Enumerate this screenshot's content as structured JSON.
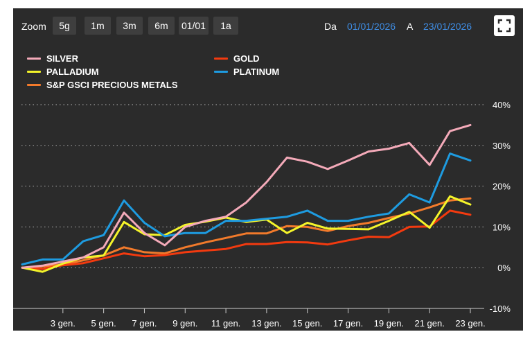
{
  "toolbar": {
    "zoom_label": "Zoom",
    "zoom_options": [
      "5g",
      "1m",
      "3m",
      "6m",
      "01/01",
      "1a"
    ],
    "from_label": "Da",
    "from_value": "01/01/2026",
    "to_label": "A",
    "to_value": "23/01/2026",
    "fullscreen_icon": "fullscreen-icon"
  },
  "colors": {
    "background": "#2b2b2b",
    "button": "#3e3e3e",
    "date_link": "#3f8ee6",
    "grid": "#8a8a8a"
  },
  "chart_data": {
    "type": "line",
    "xlabel": "",
    "ylabel": "",
    "x": [
      "1 gen.",
      "2 gen.",
      "3 gen.",
      "4 gen.",
      "5 gen.",
      "6 gen.",
      "7 gen.",
      "8 gen.",
      "9 gen.",
      "10 gen.",
      "11 gen.",
      "12 gen.",
      "13 gen.",
      "14 gen.",
      "15 gen.",
      "16 gen.",
      "17 gen.",
      "18 gen.",
      "19 gen.",
      "20 gen.",
      "21 gen.",
      "22 gen.",
      "23 gen."
    ],
    "x_tick_labels": [
      "3 gen.",
      "5 gen.",
      "7 gen.",
      "9 gen.",
      "11 gen.",
      "13 gen.",
      "15 gen.",
      "17 gen.",
      "19 gen.",
      "21 gen.",
      "23 gen."
    ],
    "y_tick_labels": [
      "40%",
      "30%",
      "20%",
      "10%",
      "0%",
      "-10%"
    ],
    "y_ticks": [
      40,
      30,
      20,
      10,
      0,
      -10
    ],
    "ylim": [
      -10,
      40
    ],
    "y_unit": "%",
    "grid": "horizontal dotted",
    "legend_position": "top-left, two columns",
    "series": [
      {
        "name": "SILVER",
        "color": "#f4aab9",
        "values": [
          0,
          0.5,
          1.5,
          2.5,
          5,
          13.5,
          8.5,
          5.5,
          10,
          11.5,
          12.5,
          16,
          21,
          27,
          26,
          24.2,
          26.3,
          28.5,
          29.2,
          30.6,
          25.2,
          33.5,
          35
        ]
      },
      {
        "name": "GOLD",
        "color": "#f33a0f",
        "values": [
          0,
          -0.3,
          0.6,
          1.1,
          2.3,
          3.5,
          2.8,
          3.1,
          3.8,
          4.2,
          4.6,
          5.8,
          5.8,
          6.3,
          6.2,
          5.7,
          6.7,
          7.6,
          7.5,
          10,
          10.1,
          14,
          13
        ]
      },
      {
        "name": "PALLADIUM",
        "color": "#f4f42a",
        "values": [
          0,
          -1,
          1,
          2.5,
          3,
          11.2,
          8.2,
          8,
          10.5,
          11.3,
          12.3,
          11.2,
          11.8,
          8.5,
          11,
          9.6,
          9.5,
          9.4,
          11.5,
          13.7,
          9.8,
          17.5,
          15.5
        ]
      },
      {
        "name": "PLATINUM",
        "color": "#1e9be0",
        "values": [
          0.8,
          2,
          2,
          6.5,
          8,
          16.5,
          11,
          7.7,
          8.5,
          8.5,
          11.5,
          11.5,
          12,
          12.5,
          14,
          11.5,
          11.5,
          12.5,
          13.3,
          18,
          16,
          28,
          26.3
        ]
      },
      {
        "name": "S&P GSCI PRECIOUS METALS",
        "color": "#f27a2b",
        "values": [
          0,
          0.3,
          0.8,
          1.8,
          3,
          5,
          3.8,
          3.5,
          5,
          6.2,
          7.3,
          8.4,
          8.4,
          10.2,
          10,
          9,
          10.2,
          11,
          12.2,
          13.3,
          14.8,
          16.5,
          17
        ]
      }
    ]
  }
}
